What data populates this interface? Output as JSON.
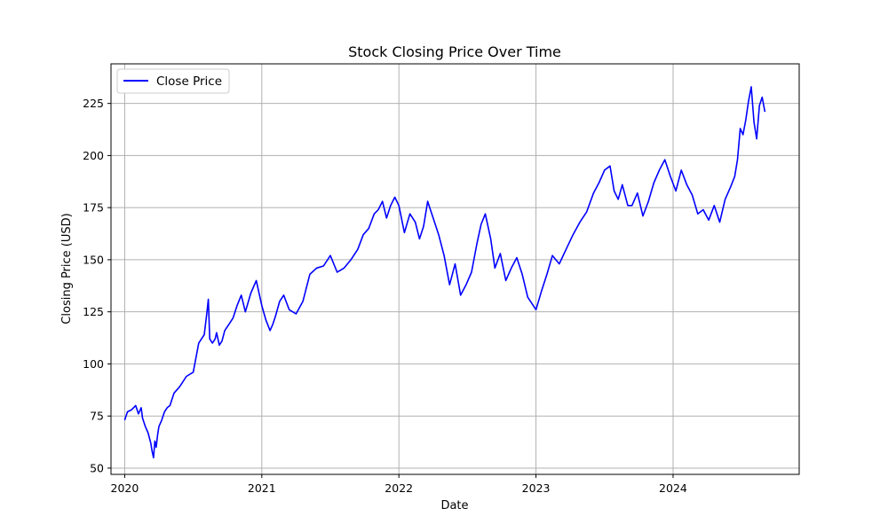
{
  "chart_data": {
    "type": "line",
    "title": "Stock Closing Price Over Time",
    "xlabel": "Date",
    "ylabel": "Closing Price (USD)",
    "grid": true,
    "legend_position": "top-left",
    "ylim": [
      47,
      244
    ],
    "xlim": [
      2019.9,
      2024.92
    ],
    "y_ticks": [
      50,
      75,
      100,
      125,
      150,
      175,
      200,
      225
    ],
    "x_ticks": [
      2020,
      2021,
      2022,
      2023,
      2024
    ],
    "x_tick_labels": [
      "2020",
      "2021",
      "2022",
      "2023",
      "2024"
    ],
    "series": [
      {
        "name": "Close Price",
        "color": "#0000ff",
        "x": [
          2020.0,
          2020.02,
          2020.05,
          2020.08,
          2020.1,
          2020.12,
          2020.13,
          2020.15,
          2020.17,
          2020.19,
          2020.2,
          2020.21,
          2020.22,
          2020.23,
          2020.24,
          2020.25,
          2020.27,
          2020.29,
          2020.31,
          2020.33,
          2020.36,
          2020.4,
          2020.45,
          2020.5,
          2020.54,
          2020.58,
          2020.6,
          2020.61,
          2020.62,
          2020.64,
          2020.66,
          2020.67,
          2020.69,
          2020.71,
          2020.73,
          2020.76,
          2020.79,
          2020.82,
          2020.85,
          2020.88,
          2020.92,
          2020.96,
          2021.0,
          2021.03,
          2021.06,
          2021.08,
          2021.1,
          2021.13,
          2021.16,
          2021.2,
          2021.25,
          2021.3,
          2021.35,
          2021.4,
          2021.45,
          2021.5,
          2021.55,
          2021.6,
          2021.65,
          2021.7,
          2021.74,
          2021.78,
          2021.82,
          2021.85,
          2021.88,
          2021.91,
          2021.94,
          2021.97,
          2022.0,
          2022.04,
          2022.08,
          2022.12,
          2022.15,
          2022.18,
          2022.21,
          2022.25,
          2022.29,
          2022.33,
          2022.37,
          2022.41,
          2022.45,
          2022.49,
          2022.53,
          2022.57,
          2022.6,
          2022.63,
          2022.67,
          2022.7,
          2022.74,
          2022.78,
          2022.82,
          2022.86,
          2022.9,
          2022.94,
          2022.98,
          2023.0,
          2023.04,
          2023.08,
          2023.12,
          2023.17,
          2023.22,
          2023.27,
          2023.32,
          2023.37,
          2023.42,
          2023.46,
          2023.5,
          2023.54,
          2023.57,
          2023.6,
          2023.63,
          2023.67,
          2023.7,
          2023.74,
          2023.78,
          2023.82,
          2023.86,
          2023.9,
          2023.94,
          2023.98,
          2024.02,
          2024.06,
          2024.1,
          2024.14,
          2024.18,
          2024.22,
          2024.26,
          2024.3,
          2024.34,
          2024.38,
          2024.42,
          2024.45,
          2024.47,
          2024.49,
          2024.51,
          2024.53,
          2024.55,
          2024.57,
          2024.59,
          2024.61,
          2024.63,
          2024.65,
          2024.67
        ],
        "values": [
          73,
          77,
          78,
          80,
          76,
          79,
          74,
          70,
          67,
          62,
          58,
          55,
          63,
          60,
          66,
          70,
          73,
          77,
          79,
          80,
          86,
          89,
          94,
          96,
          110,
          114,
          125,
          131,
          112,
          110,
          112,
          115,
          109,
          111,
          116,
          119,
          122,
          128,
          133,
          125,
          134,
          140,
          128,
          121,
          116,
          119,
          123,
          130,
          133,
          126,
          124,
          130,
          143,
          146,
          147,
          152,
          144,
          146,
          150,
          155,
          162,
          165,
          172,
          174,
          178,
          170,
          176,
          180,
          176,
          163,
          172,
          168,
          160,
          166,
          178,
          170,
          162,
          152,
          138,
          148,
          133,
          138,
          144,
          158,
          167,
          172,
          160,
          146,
          153,
          140,
          146,
          151,
          143,
          132,
          128,
          126,
          135,
          143,
          152,
          148,
          155,
          162,
          168,
          173,
          182,
          187,
          193,
          195,
          183,
          179,
          186,
          176,
          176,
          182,
          171,
          178,
          187,
          193,
          198,
          190,
          183,
          193,
          186,
          181,
          172,
          174,
          169,
          176,
          168,
          179,
          185,
          190,
          198,
          213,
          210,
          217,
          226,
          233,
          216,
          208,
          224,
          228,
          221
        ]
      }
    ]
  }
}
